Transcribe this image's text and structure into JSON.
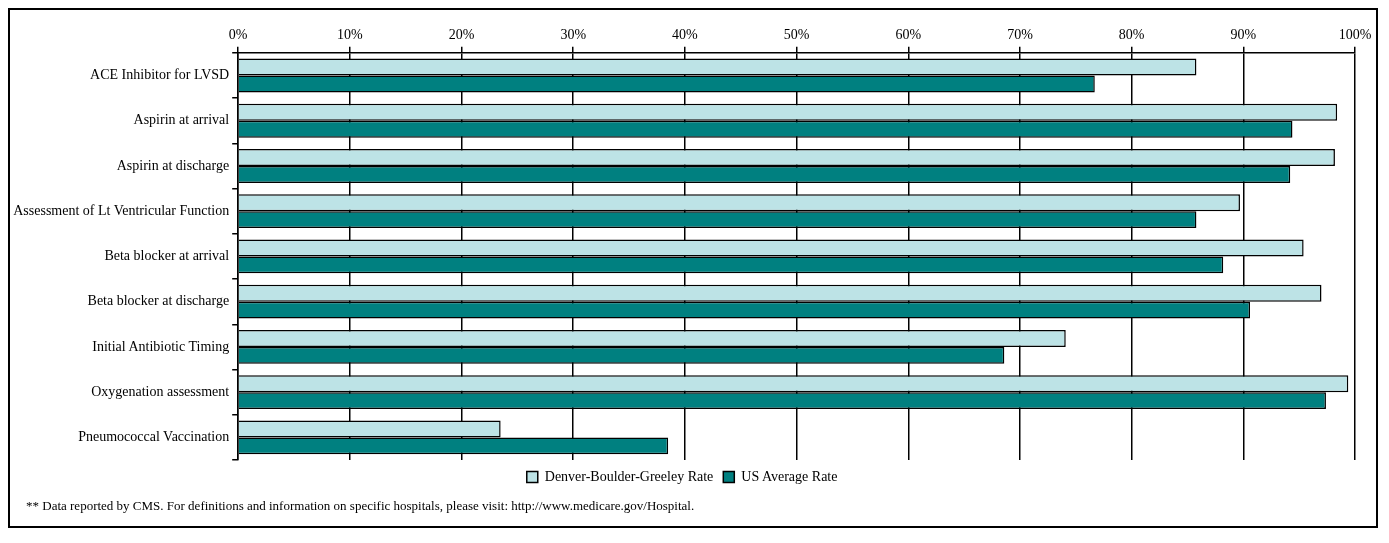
{
  "chart_data": {
    "type": "bar",
    "orientation": "horizontal",
    "categories": [
      "ACE Inhibitor for LVSD",
      "Aspirin at arrival",
      "Aspirin at discharge",
      "Assessment of Lt Ventricular Function",
      "Beta blocker at arrival",
      "Beta blocker at discharge",
      "Initial Antibiotic Timing",
      "Oxygenation assessment",
      "Pneumococcal Vaccination"
    ],
    "series": [
      {
        "name": "Denver-Boulder-Greeley Rate",
        "color": "#bde3e6",
        "values": [
          85.8,
          98.4,
          98.2,
          89.7,
          95.4,
          97.0,
          74.1,
          99.4,
          23.5
        ]
      },
      {
        "name": "US Average Rate",
        "color": "#008080",
        "values": [
          76.7,
          94.4,
          94.2,
          85.8,
          88.2,
          90.6,
          68.6,
          97.4,
          38.5
        ]
      }
    ],
    "xlim": [
      0,
      100
    ],
    "xticks": [
      {
        "value": 0,
        "label": "0%"
      },
      {
        "value": 10,
        "label": "10%"
      },
      {
        "value": 20,
        "label": "20%"
      },
      {
        "value": 30,
        "label": "30%"
      },
      {
        "value": 40,
        "label": "40%"
      },
      {
        "value": 50,
        "label": "50%"
      },
      {
        "value": 60,
        "label": "60%"
      },
      {
        "value": 70,
        "label": "70%"
      },
      {
        "value": 80,
        "label": "80%"
      },
      {
        "value": 90,
        "label": "90%"
      },
      {
        "value": 100,
        "label": "100%"
      }
    ],
    "grid": "x",
    "legend": "bottom",
    "annotations": [
      "** Data reported by CMS.  For definitions and information on specific hospitals, please visit: http://www.medicare.gov/Hospital."
    ]
  }
}
